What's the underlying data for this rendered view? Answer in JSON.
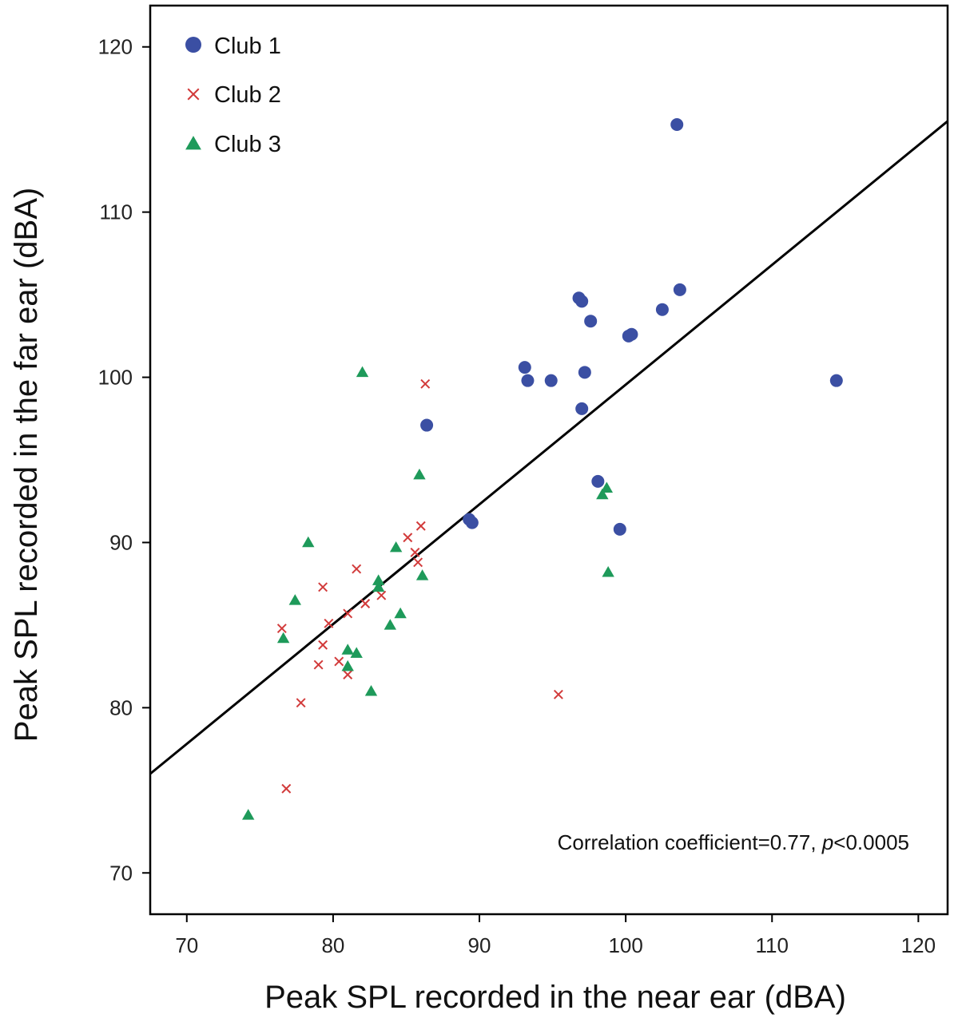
{
  "chart_data": {
    "type": "scatter",
    "title": "",
    "xlabel": "Peak SPL recorded in the near ear (dBA)",
    "ylabel": "Peak SPL recorded in the far ear (dBA)",
    "xlim": [
      67.5,
      122
    ],
    "ylim": [
      67.5,
      122.5
    ],
    "xticks": [
      "70",
      "80",
      "90",
      "100",
      "110",
      "120"
    ],
    "yticks": [
      "70",
      "80",
      "90",
      "100",
      "110",
      "120"
    ],
    "grid": false,
    "legend_position": "top-left",
    "annotation": {
      "prefix": "Correlation coefficient=0.77, ",
      "italic": "p",
      "suffix": "<0.0005"
    },
    "fit_line": {
      "x": [
        67.5,
        122
      ],
      "y": [
        76,
        115.5
      ],
      "color": "#000000"
    },
    "series": [
      {
        "name": "Club 1",
        "marker": "circle",
        "color": "#3b4fa3",
        "points": [
          [
            103.5,
            115.3
          ],
          [
            96.8,
            104.8
          ],
          [
            97.0,
            104.6
          ],
          [
            103.7,
            105.3
          ],
          [
            102.5,
            104.1
          ],
          [
            97.6,
            103.4
          ],
          [
            100.2,
            102.5
          ],
          [
            100.4,
            102.6
          ],
          [
            93.1,
            100.6
          ],
          [
            93.3,
            99.8
          ],
          [
            94.9,
            99.8
          ],
          [
            97.2,
            100.3
          ],
          [
            114.4,
            99.8
          ],
          [
            97.0,
            98.1
          ],
          [
            86.4,
            97.1
          ],
          [
            98.1,
            93.7
          ],
          [
            89.3,
            91.4
          ],
          [
            89.5,
            91.2
          ],
          [
            99.6,
            90.8
          ]
        ]
      },
      {
        "name": "Club 2",
        "marker": "x",
        "color": "#d23b3b",
        "points": [
          [
            86.3,
            99.6
          ],
          [
            86.0,
            91.0
          ],
          [
            85.1,
            90.3
          ],
          [
            85.6,
            89.4
          ],
          [
            85.8,
            88.8
          ],
          [
            81.6,
            88.4
          ],
          [
            79.3,
            87.3
          ],
          [
            83.3,
            86.8
          ],
          [
            82.2,
            86.3
          ],
          [
            81.0,
            85.7
          ],
          [
            79.7,
            85.1
          ],
          [
            76.5,
            84.8
          ],
          [
            79.3,
            83.8
          ],
          [
            79.0,
            82.6
          ],
          [
            80.4,
            82.8
          ],
          [
            81.0,
            82.0
          ],
          [
            77.8,
            80.3
          ],
          [
            95.4,
            80.8
          ],
          [
            76.8,
            75.1
          ]
        ]
      },
      {
        "name": "Club 3",
        "marker": "triangle",
        "color": "#1e9a5a",
        "points": [
          [
            82.0,
            100.3
          ],
          [
            85.9,
            94.1
          ],
          [
            98.7,
            93.3
          ],
          [
            98.4,
            92.9
          ],
          [
            78.3,
            90.0
          ],
          [
            84.3,
            89.7
          ],
          [
            86.1,
            88.0
          ],
          [
            83.1,
            87.7
          ],
          [
            83.1,
            87.3
          ],
          [
            98.8,
            88.2
          ],
          [
            77.4,
            86.5
          ],
          [
            84.6,
            85.7
          ],
          [
            83.9,
            85.0
          ],
          [
            76.6,
            84.2
          ],
          [
            81.0,
            83.5
          ],
          [
            81.6,
            83.3
          ],
          [
            81.0,
            82.5
          ],
          [
            82.6,
            81.0
          ],
          [
            74.2,
            73.5
          ]
        ]
      }
    ]
  }
}
